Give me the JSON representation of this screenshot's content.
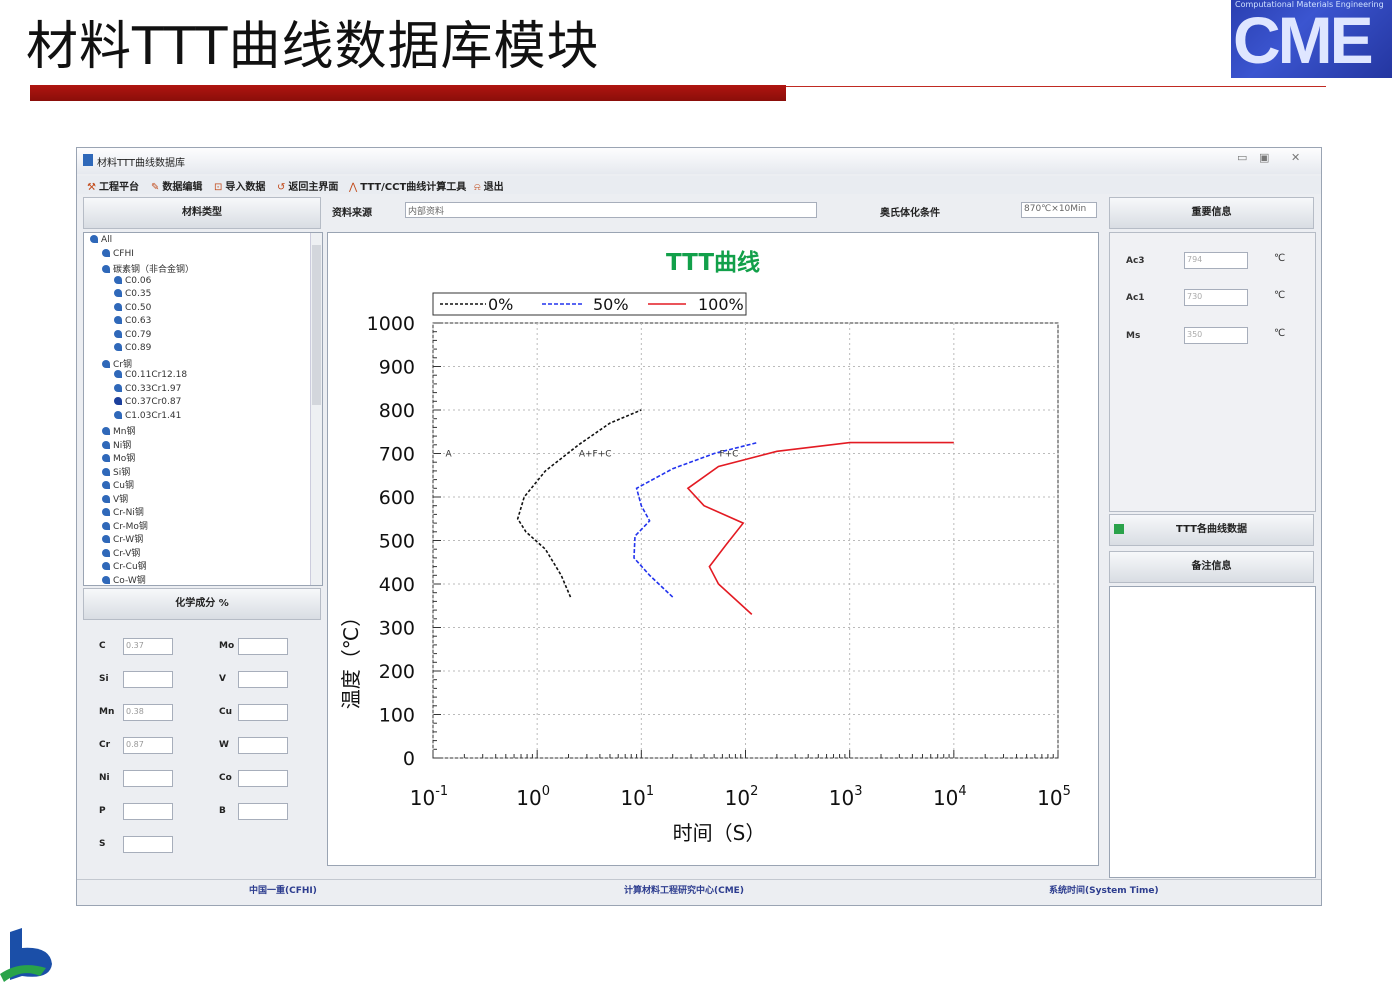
{
  "slide": {
    "title": "材料TTT曲线数据库模块",
    "logo_text": "CME",
    "logo_subtext": "Computational Materials Engineering"
  },
  "window": {
    "title": "材料TTT曲线数据库",
    "controls": [
      "▭",
      "▣",
      "✕"
    ],
    "menu": [
      {
        "label": "工程平台",
        "icon": "wrench-icon",
        "glyph": "⚒"
      },
      {
        "label": "数据编辑",
        "icon": "edit-icon",
        "glyph": "✎"
      },
      {
        "label": "导入数据",
        "icon": "import-icon",
        "glyph": "⊡"
      },
      {
        "label": "返回主界面",
        "icon": "return-icon",
        "glyph": "↺"
      },
      {
        "label": "TTT/CCT曲线计算工具",
        "icon": "curve-tool-icon",
        "glyph": "⋀"
      },
      {
        "label": "退出",
        "icon": "exit-icon",
        "glyph": "⍾"
      }
    ]
  },
  "left_panel": {
    "header": "材料类型",
    "tree": [
      {
        "label": "All",
        "level": 0
      },
      {
        "label": "CFHI",
        "level": 1
      },
      {
        "label": "碳素钢（非合金钢）",
        "level": 1
      },
      {
        "label": "C0.06",
        "level": 2
      },
      {
        "label": "C0.35",
        "level": 2
      },
      {
        "label": "C0.50",
        "level": 2
      },
      {
        "label": "C0.63",
        "level": 2
      },
      {
        "label": "C0.79",
        "level": 2
      },
      {
        "label": "C0.89",
        "level": 2
      },
      {
        "label": "Cr钢",
        "level": 1
      },
      {
        "label": "C0.11Cr12.18",
        "level": 2
      },
      {
        "label": "C0.33Cr1.97",
        "level": 2
      },
      {
        "label": "C0.37Cr0.87",
        "level": 2,
        "selected": true
      },
      {
        "label": "C1.03Cr1.41",
        "level": 2
      },
      {
        "label": "Mn钢",
        "level": 1
      },
      {
        "label": "Ni钢",
        "level": 1
      },
      {
        "label": "Mo钢",
        "level": 1
      },
      {
        "label": "Si钢",
        "level": 1
      },
      {
        "label": "Cu钢",
        "level": 1
      },
      {
        "label": "V钢",
        "level": 1
      },
      {
        "label": "Cr-Ni钢",
        "level": 1
      },
      {
        "label": "Cr-Mo钢",
        "level": 1
      },
      {
        "label": "Cr-W钢",
        "level": 1
      },
      {
        "label": "Cr-V钢",
        "level": 1
      },
      {
        "label": "Cr-Cu钢",
        "level": 1
      },
      {
        "label": "Co-W钢",
        "level": 1
      }
    ],
    "chem_header": "化学成分 %",
    "chem": [
      {
        "el": "C",
        "value": "0.37"
      },
      {
        "el": "Si",
        "value": ""
      },
      {
        "el": "Mn",
        "value": "0.38"
      },
      {
        "el": "Cr",
        "value": "0.87"
      },
      {
        "el": "Ni",
        "value": ""
      },
      {
        "el": "P",
        "value": ""
      },
      {
        "el": "S",
        "value": ""
      }
    ],
    "chem2": [
      {
        "el": "Mo",
        "value": ""
      },
      {
        "el": "V",
        "value": ""
      },
      {
        "el": "Cu",
        "value": ""
      },
      {
        "el": "W",
        "value": ""
      },
      {
        "el": "Co",
        "value": ""
      },
      {
        "el": "B",
        "value": ""
      }
    ]
  },
  "source": {
    "label": "资料来源",
    "value": "内部资料",
    "cond_label": "奥氏体化条件",
    "cond_value": "870℃×10Min"
  },
  "chart_data": {
    "type": "line",
    "title": "TTT曲线",
    "xlabel": "时间（S）",
    "ylabel": "温度（℃）",
    "xscale": "log",
    "xlim": [
      -1,
      5
    ],
    "ylim": [
      0,
      1000
    ],
    "yticks": [
      "0",
      "100",
      "200",
      "300",
      "400",
      "500",
      "600",
      "700",
      "800",
      "900",
      "1000"
    ],
    "xticks": [
      {
        "base": "10",
        "exp": "-1"
      },
      {
        "base": "10",
        "exp": "0"
      },
      {
        "base": "10",
        "exp": "1"
      },
      {
        "base": "10",
        "exp": "2"
      },
      {
        "base": "10",
        "exp": "3"
      },
      {
        "base": "10",
        "exp": "4"
      },
      {
        "base": "10",
        "exp": "5"
      }
    ],
    "legend_position": "top",
    "annotations": [
      "A",
      "A+F+C",
      "F+C"
    ],
    "series": [
      {
        "name": "0%",
        "color": "#111111",
        "dash": "3,2",
        "points": [
          [
            2.09,
            370
          ],
          [
            1.7,
            420
          ],
          [
            1.2,
            480
          ],
          [
            0.78,
            520
          ],
          [
            0.65,
            550
          ],
          [
            0.75,
            600
          ],
          [
            1.2,
            660
          ],
          [
            2.5,
            720
          ],
          [
            5,
            770
          ],
          [
            10,
            800
          ]
        ]
      },
      {
        "name": "50%",
        "color": "#2233ee",
        "dash": "4,2",
        "points": [
          [
            20,
            370
          ],
          [
            12,
            420
          ],
          [
            8.5,
            460
          ],
          [
            8.7,
            510
          ],
          [
            12,
            545
          ],
          [
            10,
            580
          ],
          [
            9,
            620
          ],
          [
            20,
            665
          ],
          [
            50,
            700
          ],
          [
            130,
            725
          ]
        ]
      },
      {
        "name": "100%",
        "color": "#e31b23",
        "dash": "",
        "points": [
          [
            115,
            330
          ],
          [
            55,
            400
          ],
          [
            45,
            440
          ],
          [
            65,
            490
          ],
          [
            95,
            540
          ],
          [
            40,
            580
          ],
          [
            28,
            620
          ],
          [
            55,
            670
          ],
          [
            200,
            705
          ],
          [
            1000,
            725
          ],
          [
            10000,
            725
          ]
        ]
      }
    ]
  },
  "right_panel": {
    "header": "重要信息",
    "fields": [
      {
        "label": "Ac3",
        "value": "794",
        "unit": "℃"
      },
      {
        "label": "Ac1",
        "value": "730",
        "unit": "℃"
      },
      {
        "label": "Ms",
        "value": "350",
        "unit": "℃"
      }
    ],
    "ttt_button": "TTT各曲线数据",
    "notes_header": "备注信息"
  },
  "status": {
    "left": "中国一重(CFHI)",
    "center": "计算材料工程研究中心(CME)",
    "right": "系统时间(System Time)"
  }
}
